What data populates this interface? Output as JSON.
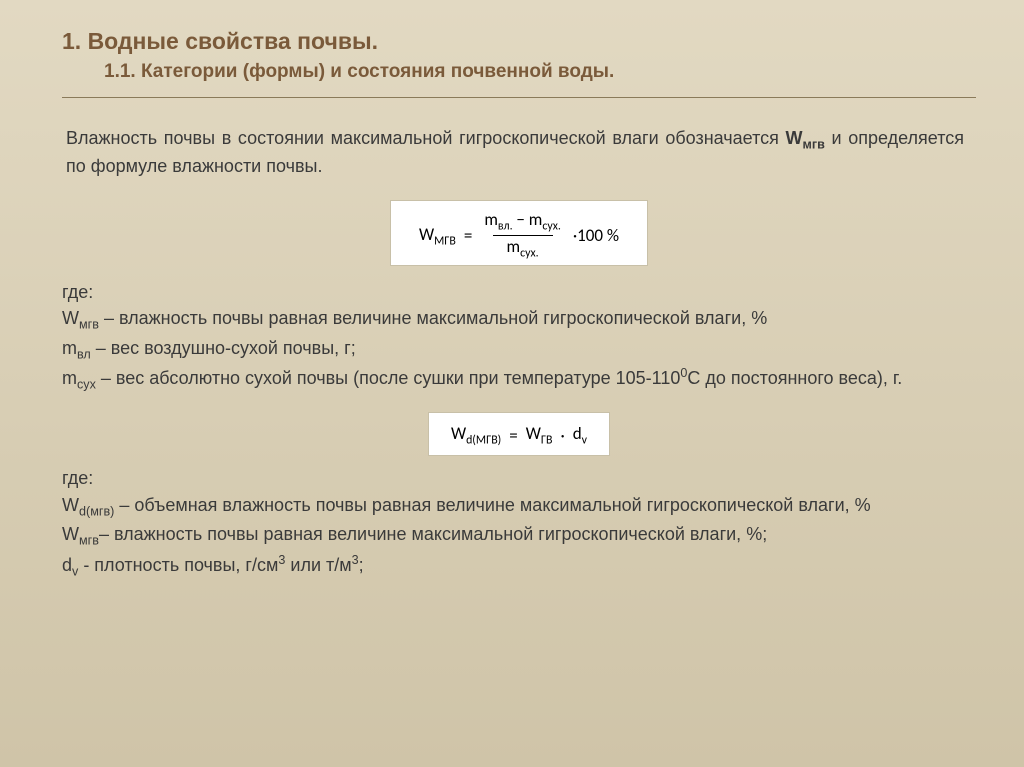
{
  "heading1": "1. Водные свойства почвы.",
  "heading2": "1.1. Категории (формы) и состояния почвенной воды.",
  "intro": {
    "part1": "Влажность почвы в состоянии максимальной гигроскопической влаги обозначается ",
    "w_label": "W",
    "w_sub": "мгв",
    "part2": " и определяется по формуле влажности почвы."
  },
  "formula1": {
    "lhs": "W",
    "lhs_sub": "МГВ",
    "eq": "=",
    "num_a": "m",
    "num_a_sub": "вл.",
    "minus": "−",
    "num_b": "m",
    "num_b_sub": "сух.",
    "den": "m",
    "den_sub": "сух.",
    "tail": "·100 %"
  },
  "defs1": {
    "gde": "где:",
    "l1a": "W",
    "l1a_sub": "мгв",
    "l1b": " – влажность почвы равная величине максимальной гигроскопической влаги, %",
    "l2a": "m",
    "l2a_sub": "вл",
    "l2b": " – вес воздушно-сухой почвы, г;",
    "l3a": "m",
    "l3a_sub": "сух",
    "l3b": " – вес абсолютно сухой почвы (после сушки при температуре 105-110",
    "l3_sup": "0",
    "l3c": "С до постоянного веса), г."
  },
  "formula2": {
    "lhs": "W",
    "lhs_sub": "d(МГВ)",
    "eq": "=",
    "r1": "W",
    "r1_sub": "ГВ",
    "dot": "·",
    "r2": "d",
    "r2_sub": "v"
  },
  "defs2": {
    "gde": "где:",
    "l1a": "W",
    "l1a_sub": "d(мгв)",
    "l1b": " – объемная влажность почвы равная величине максимальной гигроскопической влаги, %",
    "l2a": "W",
    "l2a_sub": "мгв",
    "l2b": "– влажность почвы равная величине максимальной гигроскопической влаги, %;",
    "l3a": "d",
    "l3a_sub": "v",
    "l3b": " - плотность почвы, г/см",
    "l3_sup1": "3",
    "l3c": " или т/м",
    "l3_sup2": "3",
    "l3d": ";"
  }
}
